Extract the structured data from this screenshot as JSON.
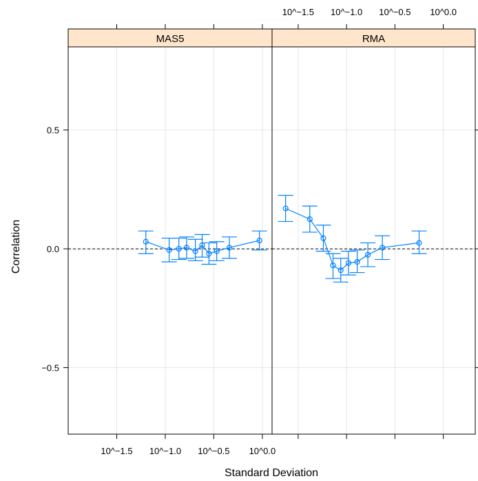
{
  "colors": {
    "series": "#0080ff",
    "strip_bg": "#ffe5cc",
    "grid": "#e6e6e6",
    "frame": "#000000"
  },
  "chart_data": {
    "type": "line",
    "x_scale": "log10",
    "xlabel": "Standard Deviation",
    "ylabel": "Correlation",
    "ylim": [
      -0.78,
      0.85
    ],
    "y_ticks": [
      -0.5,
      0.0,
      0.5
    ],
    "y_tick_labels": [
      "−0.5",
      "0.0",
      "0.5"
    ],
    "reference_line_y": 0.0,
    "grid": true,
    "error_bars": true,
    "panels": [
      {
        "name": "MAS5",
        "xlim_log10": [
          -2.0,
          0.1
        ],
        "x_ticks_log10": [
          -1.5,
          -1.0,
          -0.5,
          0.0
        ],
        "x_tick_labels": [
          "10^−1.5",
          "10^−1.0",
          "10^−0.5",
          "10^0.0"
        ],
        "points": [
          {
            "log10_sd": -1.2,
            "corr": 0.03,
            "lower": -0.02,
            "upper": 0.075
          },
          {
            "log10_sd": -0.96,
            "corr": -0.005,
            "lower": -0.055,
            "upper": 0.045
          },
          {
            "log10_sd": -0.86,
            "corr": 0.0,
            "lower": -0.045,
            "upper": 0.045
          },
          {
            "log10_sd": -0.78,
            "corr": 0.005,
            "lower": -0.04,
            "upper": 0.05
          },
          {
            "log10_sd": -0.69,
            "corr": -0.01,
            "lower": -0.05,
            "upper": 0.04
          },
          {
            "log10_sd": -0.62,
            "corr": 0.015,
            "lower": -0.035,
            "upper": 0.06
          },
          {
            "log10_sd": -0.55,
            "corr": -0.02,
            "lower": -0.065,
            "upper": 0.025
          },
          {
            "log10_sd": -0.47,
            "corr": -0.01,
            "lower": -0.05,
            "upper": 0.03
          },
          {
            "log10_sd": -0.34,
            "corr": 0.005,
            "lower": -0.04,
            "upper": 0.05
          },
          {
            "log10_sd": -0.03,
            "corr": 0.035,
            "lower": -0.005,
            "upper": 0.075
          }
        ]
      },
      {
        "name": "RMA",
        "xlim_log10": [
          -1.77,
          0.33
        ],
        "x_ticks_log10": [
          -1.5,
          -1.0,
          -0.5,
          0.0
        ],
        "x_tick_labels": [
          "10^−1.5",
          "10^−1.0",
          "10^−0.5",
          "10^0.0"
        ],
        "points": [
          {
            "log10_sd": -1.63,
            "corr": 0.17,
            "lower": 0.115,
            "upper": 0.225
          },
          {
            "log10_sd": -1.38,
            "corr": 0.125,
            "lower": 0.07,
            "upper": 0.18
          },
          {
            "log10_sd": -1.24,
            "corr": 0.045,
            "lower": -0.01,
            "upper": 0.1
          },
          {
            "log10_sd": -1.14,
            "corr": -0.07,
            "lower": -0.125,
            "upper": -0.02
          },
          {
            "log10_sd": -1.06,
            "corr": -0.09,
            "lower": -0.14,
            "upper": -0.04
          },
          {
            "log10_sd": -0.98,
            "corr": -0.06,
            "lower": -0.11,
            "upper": -0.01
          },
          {
            "log10_sd": -0.89,
            "corr": -0.055,
            "lower": -0.1,
            "upper": -0.005
          },
          {
            "log10_sd": -0.78,
            "corr": -0.025,
            "lower": -0.075,
            "upper": 0.025
          },
          {
            "log10_sd": -0.63,
            "corr": 0.005,
            "lower": -0.045,
            "upper": 0.055
          },
          {
            "log10_sd": -0.25,
            "corr": 0.025,
            "lower": -0.02,
            "upper": 0.075
          }
        ]
      }
    ]
  }
}
